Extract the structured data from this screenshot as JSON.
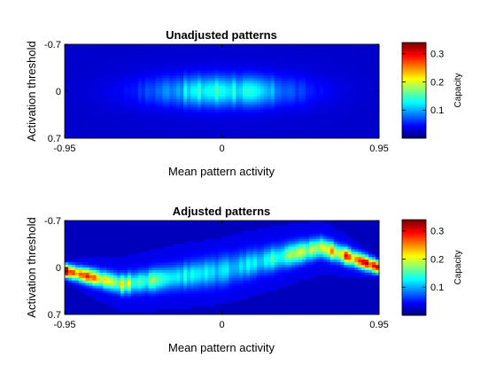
{
  "chart_data": [
    {
      "type": "heatmap",
      "title": "Unadjusted patterns",
      "xlabel": "Mean pattern activity",
      "ylabel": "Activation threshold",
      "xlim": [
        -0.95,
        0.95
      ],
      "ylim": [
        -0.7,
        0.7
      ],
      "y_reversed": true,
      "x_ticks": [
        "-0.95",
        "0",
        "0.95"
      ],
      "y_ticks": [
        "-0.7",
        "0",
        "0.7"
      ],
      "colorbar": {
        "label": "Capacity",
        "ticks": [
          "0.1",
          "0.2",
          "0.3"
        ],
        "range": [
          0,
          0.34
        ],
        "colormap": "jet"
      },
      "ridge": {
        "peak_x": 0,
        "peak_value": 0.13,
        "center_y_at_x": [
          [
            -0.95,
            0
          ],
          [
            0,
            0
          ],
          [
            0.95,
            0
          ]
        ]
      },
      "grid": false
    },
    {
      "type": "heatmap",
      "title": "Adjusted patterns",
      "xlabel": "Mean pattern activity",
      "ylabel": "Activation threshold",
      "xlim": [
        -0.95,
        0.95
      ],
      "ylim": [
        -0.7,
        0.7
      ],
      "y_reversed": true,
      "x_ticks": [
        "-0.95",
        "0",
        "0.95"
      ],
      "y_ticks": [
        "-0.7",
        "0",
        "0.7"
      ],
      "colorbar": {
        "label": "Capacity",
        "ticks": [
          "0.1",
          "0.2",
          "0.3"
        ],
        "range": [
          0,
          0.34
        ],
        "colormap": "jet"
      },
      "ridge": {
        "peak_x": 0.95,
        "peak_value": 0.3,
        "center_y_at_x": [
          [
            -0.95,
            0.05
          ],
          [
            -0.6,
            0.25
          ],
          [
            0,
            0.05
          ],
          [
            0.6,
            -0.3
          ],
          [
            0.95,
            0.0
          ]
        ]
      },
      "grid": false
    }
  ]
}
